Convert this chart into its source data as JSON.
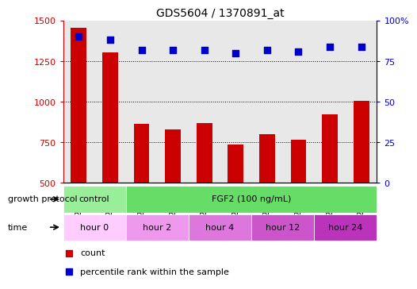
{
  "title": "GDS5604 / 1370891_at",
  "samples": [
    "GSM1224530",
    "GSM1224531",
    "GSM1224532",
    "GSM1224533",
    "GSM1224534",
    "GSM1224535",
    "GSM1224536",
    "GSM1224537",
    "GSM1224538",
    "GSM1224539"
  ],
  "counts": [
    1455,
    1305,
    865,
    830,
    870,
    735,
    800,
    765,
    920,
    1005
  ],
  "percentile_ranks": [
    90,
    88,
    82,
    82,
    82,
    80,
    82,
    81,
    84,
    84
  ],
  "ylim_left": [
    500,
    1500
  ],
  "ylim_right": [
    0,
    100
  ],
  "yticks_left": [
    500,
    750,
    1000,
    1250,
    1500
  ],
  "yticks_right": [
    0,
    25,
    50,
    75,
    100
  ],
  "bar_color": "#cc0000",
  "dot_color": "#0000cc",
  "bar_bottom": 500,
  "growth_protocol_segments": [
    {
      "label": "control",
      "span": [
        0,
        1
      ],
      "color": "#99ee99"
    },
    {
      "label": "FGF2 (100 ng/mL)",
      "span": [
        1,
        10
      ],
      "color": "#66dd66"
    }
  ],
  "time_segments": [
    {
      "label": "hour 0",
      "span": [
        0,
        1
      ],
      "color": "#ffccff"
    },
    {
      "label": "hour 2",
      "span": [
        1,
        3
      ],
      "color": "#ee99ee"
    },
    {
      "label": "hour 4",
      "span": [
        3,
        5
      ],
      "color": "#dd77dd"
    },
    {
      "label": "hour 12",
      "span": [
        5,
        7
      ],
      "color": "#cc55cc"
    },
    {
      "label": "hour 24",
      "span": [
        7,
        10
      ],
      "color": "#bb33bb"
    }
  ],
  "growth_protocol_text": "growth protocol",
  "time_text": "time",
  "legend_count_label": "count",
  "legend_percentile_label": "percentile rank within the sample",
  "tick_color_left": "#cc0000",
  "tick_color_right": "#0000cc",
  "plot_bg": "#e8e8e8",
  "grid_color": "#000000",
  "bar_width": 0.5
}
